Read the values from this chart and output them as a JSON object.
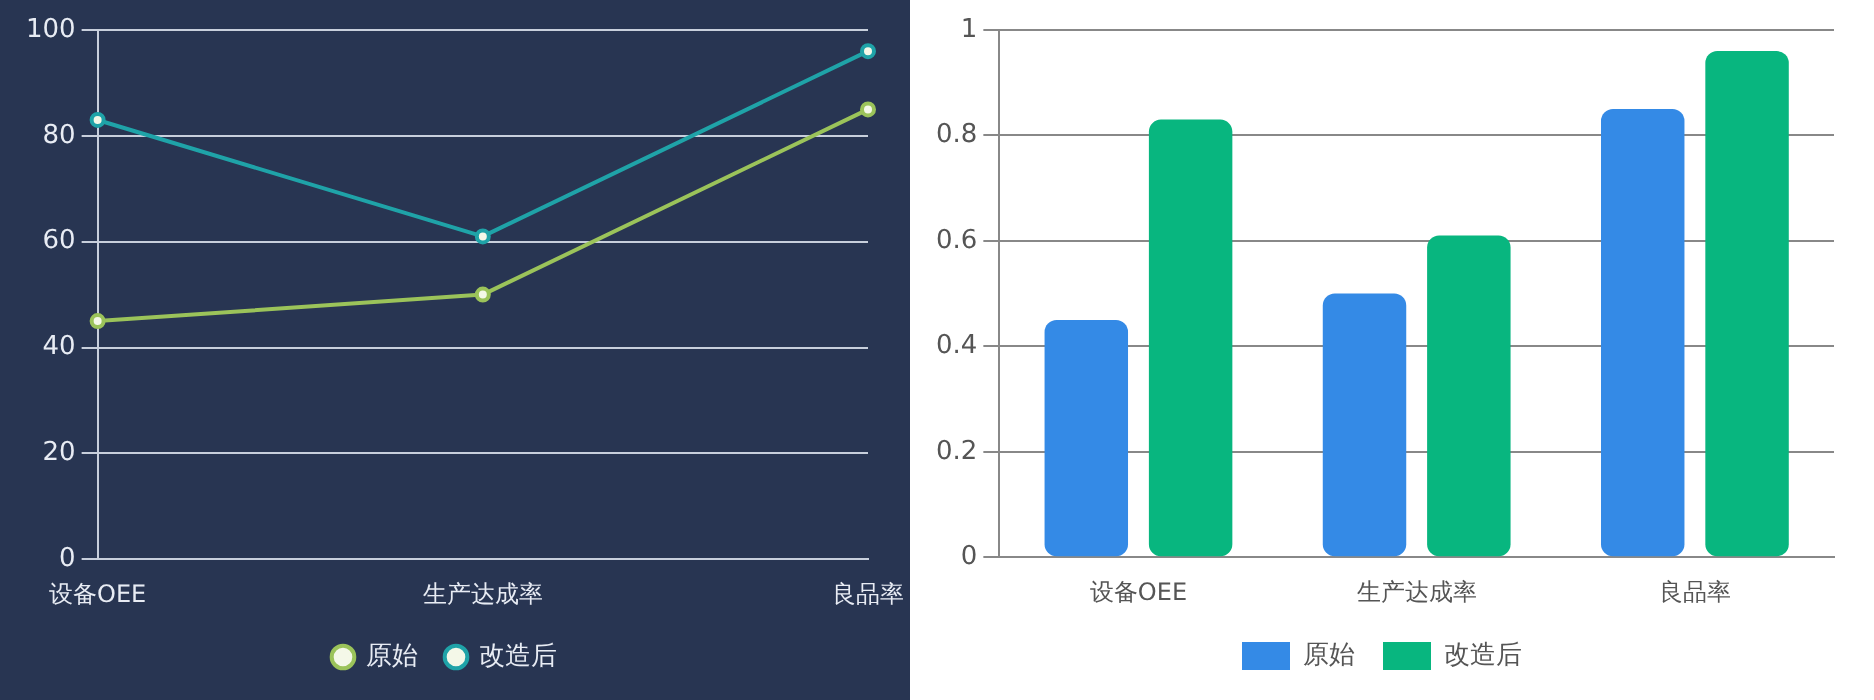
{
  "chart_data": [
    {
      "type": "line",
      "categories": [
        "设备OEE",
        "生产达成率",
        "良品率"
      ],
      "series": [
        {
          "name": "原始",
          "color": "#9bc35a",
          "values": [
            45,
            50,
            85
          ]
        },
        {
          "name": "改造后",
          "color": "#1fa3a8",
          "values": [
            83,
            61,
            96
          ]
        }
      ],
      "ylim": [
        0,
        100
      ],
      "yticks": [
        0,
        20,
        40,
        60,
        80,
        100
      ],
      "grid": "y",
      "legend": "bottom",
      "marker": "circle"
    },
    {
      "type": "bar",
      "categories": [
        "设备OEE",
        "生产达成率",
        "良品率"
      ],
      "series": [
        {
          "name": "原始",
          "color": "#348ae6",
          "values": [
            0.45,
            0.5,
            0.85
          ]
        },
        {
          "name": "改造后",
          "color": "#08b67f",
          "values": [
            0.83,
            0.61,
            0.96
          ]
        }
      ],
      "ylim": [
        0,
        1
      ],
      "yticks": [
        0,
        0.2,
        0.4,
        0.6,
        0.8,
        1
      ],
      "grid": "y",
      "legend": "bottom"
    }
  ]
}
